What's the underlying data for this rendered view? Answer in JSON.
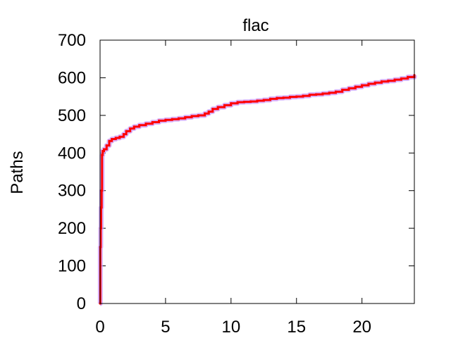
{
  "chart_data": {
    "type": "line",
    "title": "flac",
    "xlabel": "",
    "ylabel": "Paths",
    "xlim": [
      0,
      24
    ],
    "ylim": [
      0,
      700
    ],
    "xticks": [
      0,
      5,
      10,
      15,
      20
    ],
    "yticks": [
      0,
      100,
      200,
      300,
      400,
      500,
      600,
      700
    ],
    "grid": false,
    "legend": "none",
    "colors": {
      "main_line": "#ff0000",
      "band": "#cc99ff",
      "frame": "#000000"
    },
    "series": [
      {
        "x": [
          0,
          0.02,
          0.05,
          0.08,
          0.12,
          0.15,
          0.2,
          0.3,
          0.5,
          0.7,
          0.9,
          1.2,
          1.5,
          1.8,
          2.0,
          2.3,
          2.6,
          3.0,
          3.5,
          4.0,
          4.5,
          5.0,
          5.5,
          6.0,
          6.5,
          7.0,
          7.5,
          8.0,
          8.3,
          8.6,
          9.0,
          9.5,
          10.0,
          10.5,
          11.0,
          11.5,
          12.0,
          12.5,
          13.0,
          13.5,
          14.0,
          14.5,
          15.0,
          15.5,
          16.0,
          16.5,
          17.0,
          17.5,
          18.0,
          18.5,
          19.0,
          19.5,
          20.0,
          20.5,
          21.0,
          21.5,
          22.0,
          22.5,
          23.0,
          23.5,
          24.0
        ],
        "values": [
          0,
          150,
          200,
          255,
          300,
          395,
          405,
          410,
          420,
          432,
          437,
          440,
          443,
          450,
          458,
          465,
          470,
          474,
          478,
          482,
          486,
          488,
          490,
          492,
          495,
          498,
          500,
          505,
          510,
          517,
          522,
          527,
          532,
          535,
          536,
          537,
          539,
          541,
          544,
          546,
          547,
          549,
          550,
          552,
          555,
          556,
          558,
          560,
          563,
          568,
          572,
          576,
          580,
          584,
          587,
          590,
          592,
          595,
          598,
          602,
          607
        ]
      }
    ]
  }
}
